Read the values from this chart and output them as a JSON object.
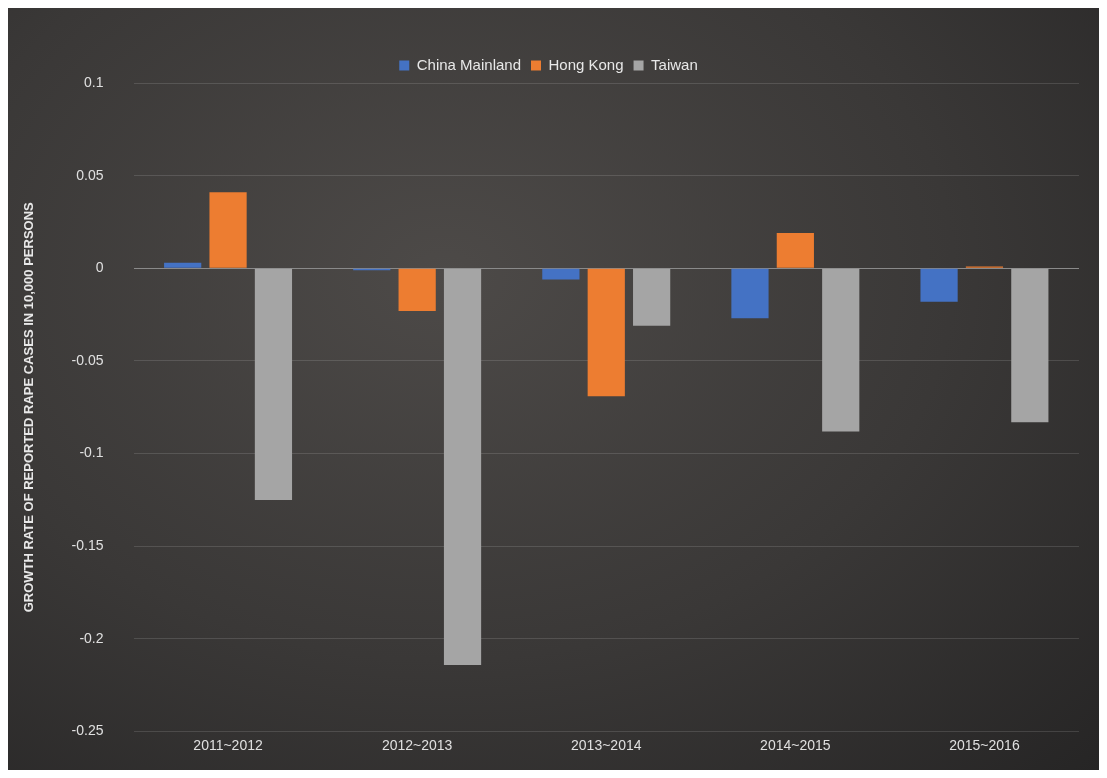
{
  "chart_data": {
    "type": "bar",
    "ylabel": "GROWTH RATE OF REPORTED RAPE CASES IN 10,000 PERSONS",
    "categories": [
      "2011~2012",
      "2012~2013",
      "2013~2014",
      "2014~2015",
      "2015~2016"
    ],
    "series": [
      {
        "name": "China Mainland",
        "color": "#4472c4",
        "values": [
          0.003,
          -0.001,
          -0.006,
          -0.027,
          -0.018
        ]
      },
      {
        "name": "Hong Kong",
        "color": "#ed7d31",
        "values": [
          0.041,
          -0.023,
          -0.069,
          0.019,
          0.001
        ]
      },
      {
        "name": "Taiwan",
        "color": "#a5a5a5",
        "values": [
          -0.125,
          -0.214,
          -0.031,
          -0.088,
          -0.083
        ]
      }
    ],
    "ylim": [
      -0.25,
      0.1
    ],
    "yticks": [
      -0.25,
      -0.2,
      -0.15,
      -0.1,
      -0.05,
      0,
      0.05,
      0.1
    ],
    "grid": "y",
    "legend": "top"
  }
}
